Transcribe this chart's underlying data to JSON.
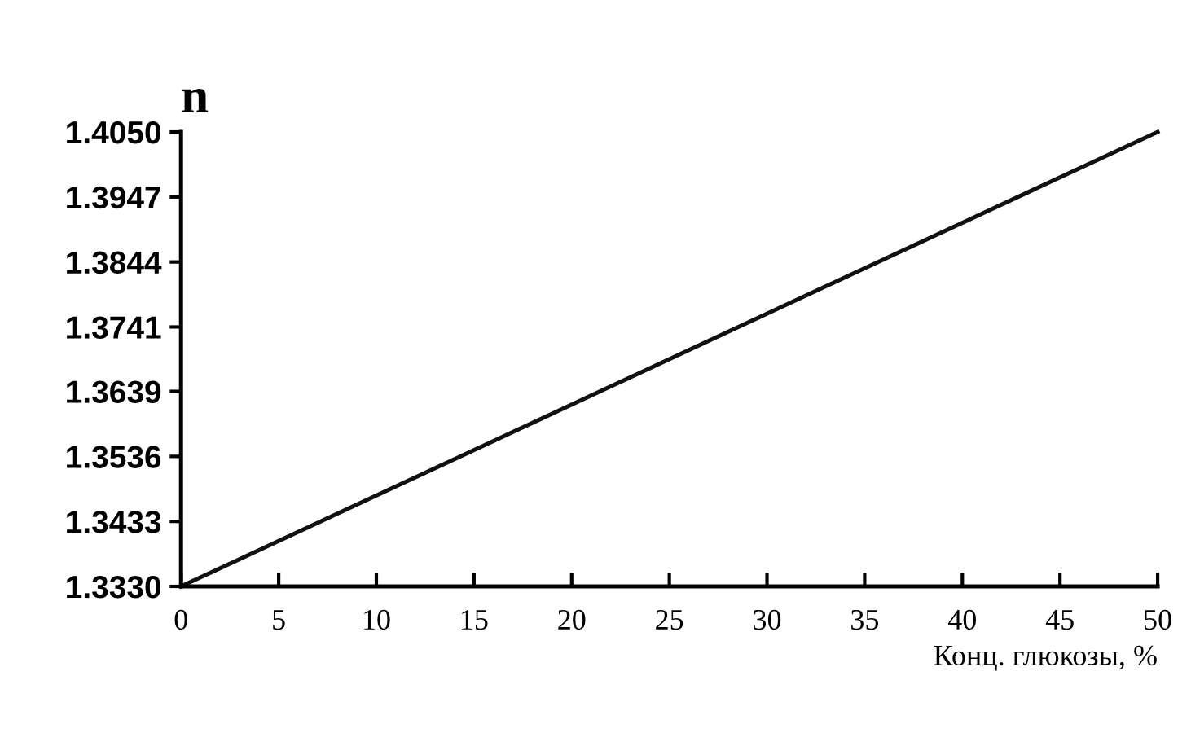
{
  "chart_data": {
    "type": "line",
    "ylabel": "n",
    "xlabel": "Конц. глюкозы, %",
    "x": [
      0,
      50
    ],
    "series": [
      {
        "color": "#111111",
        "values": [
          1.333,
          1.405
        ]
      }
    ],
    "xlim": [
      0,
      50
    ],
    "xticks": [
      0,
      5,
      10,
      15,
      20,
      25,
      30,
      35,
      40,
      45,
      50
    ],
    "ylim": [
      1.333,
      1.405
    ],
    "yticks": [
      {
        "value": 1.333,
        "label": "1.3330"
      },
      {
        "value": 1.3433,
        "label": "1.3433"
      },
      {
        "value": 1.3536,
        "label": "1.3536"
      },
      {
        "value": 1.3639,
        "label": "1.3639"
      },
      {
        "value": 1.3741,
        "label": "1.3741"
      },
      {
        "value": 1.3844,
        "label": "1.3844"
      },
      {
        "value": 1.3947,
        "label": "1.3947"
      },
      {
        "value": 1.405,
        "label": "1.4050"
      }
    ],
    "grid": false,
    "legend": false,
    "marker": "none",
    "line_style": "solid"
  }
}
